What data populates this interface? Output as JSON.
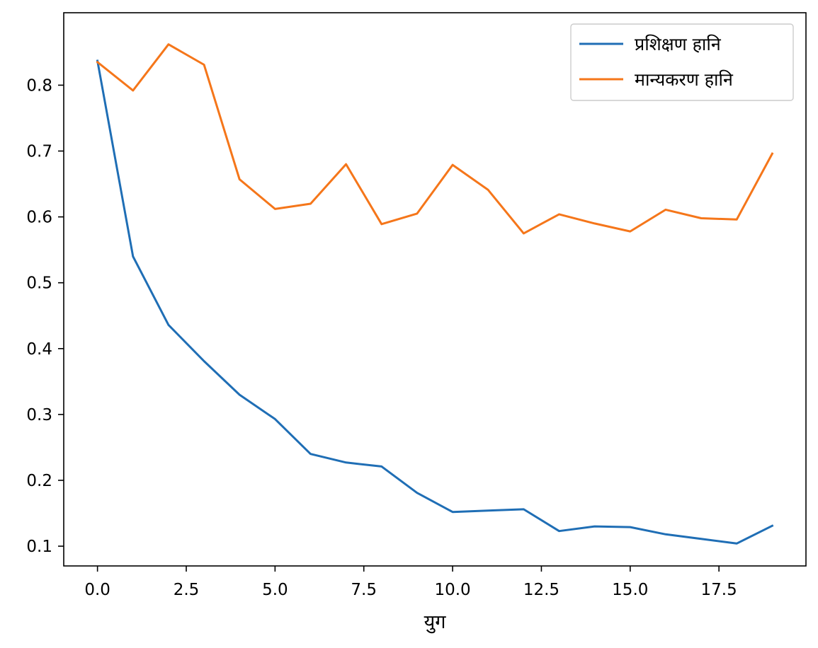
{
  "chart_data": {
    "type": "line",
    "title": "",
    "xlabel": "युग",
    "ylabel": "",
    "xlim": [
      -0.95,
      19.95
    ],
    "ylim": [
      0.07,
      0.91
    ],
    "xticks": [
      0,
      2.5,
      5,
      7.5,
      10,
      12.5,
      15,
      17.5
    ],
    "xtick_labels": [
      "0.0",
      "2.5",
      "5.0",
      "7.5",
      "10.0",
      "12.5",
      "15.0",
      "17.5"
    ],
    "yticks": [
      0.1,
      0.2,
      0.3,
      0.4,
      0.5,
      0.6,
      0.7,
      0.8
    ],
    "ytick_labels": [
      "0.1",
      "0.2",
      "0.3",
      "0.4",
      "0.5",
      "0.6",
      "0.7",
      "0.8"
    ],
    "grid": false,
    "legend_position": "top-right",
    "x": [
      0,
      1,
      2,
      3,
      4,
      5,
      6,
      7,
      8,
      9,
      10,
      11,
      12,
      13,
      14,
      15,
      16,
      17,
      18,
      19
    ],
    "series": [
      {
        "name": "प्रशिक्षण हानि",
        "color": "#1f6eb5",
        "values": [
          0.837,
          0.54,
          0.436,
          0.381,
          0.33,
          0.293,
          0.24,
          0.227,
          0.221,
          0.181,
          0.152,
          0.154,
          0.156,
          0.123,
          0.13,
          0.129,
          0.118,
          0.111,
          0.104,
          0.131
        ]
      },
      {
        "name": "मान्यकरण हानि",
        "color": "#f5761a",
        "values": [
          0.835,
          0.792,
          0.862,
          0.831,
          0.657,
          0.612,
          0.62,
          0.68,
          0.589,
          0.605,
          0.679,
          0.641,
          0.575,
          0.604,
          0.59,
          0.578,
          0.611,
          0.598,
          0.596,
          0.696
        ]
      }
    ]
  }
}
